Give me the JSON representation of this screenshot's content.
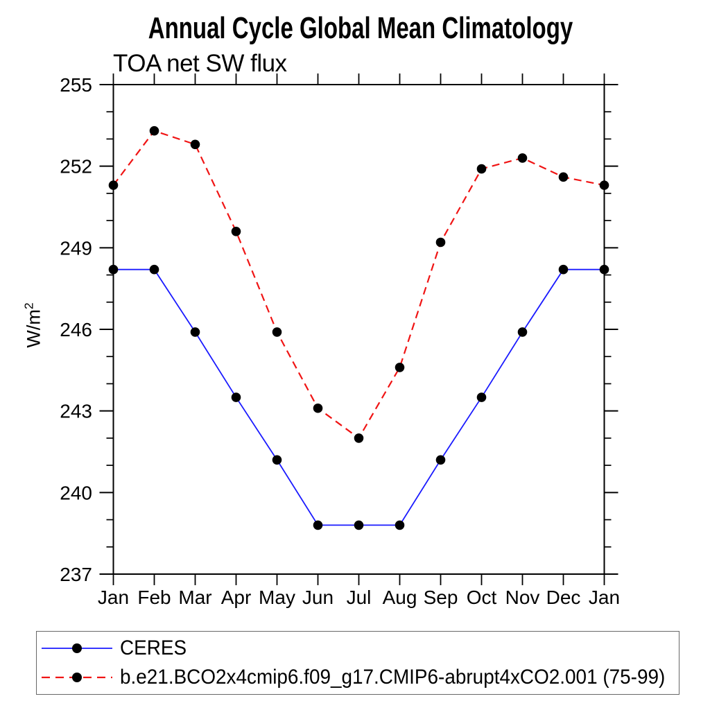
{
  "chart_data": {
    "type": "line",
    "title": "Annual Cycle Global Mean Climatology",
    "subtitle": "TOA net SW flux",
    "xlabel": "",
    "ylabel": "W/m2",
    "ylabel_display": {
      "base": "W/m",
      "sup": "2"
    },
    "categories": [
      "Jan",
      "Feb",
      "Mar",
      "Apr",
      "May",
      "Jun",
      "Jul",
      "Aug",
      "Sep",
      "Oct",
      "Nov",
      "Dec",
      "Jan"
    ],
    "ylim": [
      237,
      255
    ],
    "yticks_labeled": [
      237,
      240,
      243,
      246,
      249,
      252,
      255
    ],
    "ytick_minor_interval": 1,
    "ytick_major_interval": 3,
    "grid": false,
    "legend_position": "bottom-left-box",
    "series": [
      {
        "name": "CERES",
        "color": "#1a1aff",
        "line_style": "solid",
        "marker": "filled-circle",
        "marker_color": "#000000",
        "values": [
          248.2,
          248.2,
          245.9,
          243.5,
          241.2,
          238.8,
          238.8,
          238.8,
          241.2,
          243.5,
          245.9,
          248.2,
          248.2
        ]
      },
      {
        "name": "b.e21.BCO2x4cmip6.f09_g17.CMIP6-abrupt4xCO2.001 (75-99)",
        "color": "#f01414",
        "line_style": "dashed",
        "marker": "filled-circle",
        "marker_color": "#000000",
        "values": [
          251.3,
          253.3,
          252.8,
          249.6,
          245.9,
          243.1,
          242.0,
          244.6,
          249.2,
          251.9,
          252.3,
          251.6,
          251.3
        ]
      }
    ],
    "axis_color": "#000000"
  }
}
